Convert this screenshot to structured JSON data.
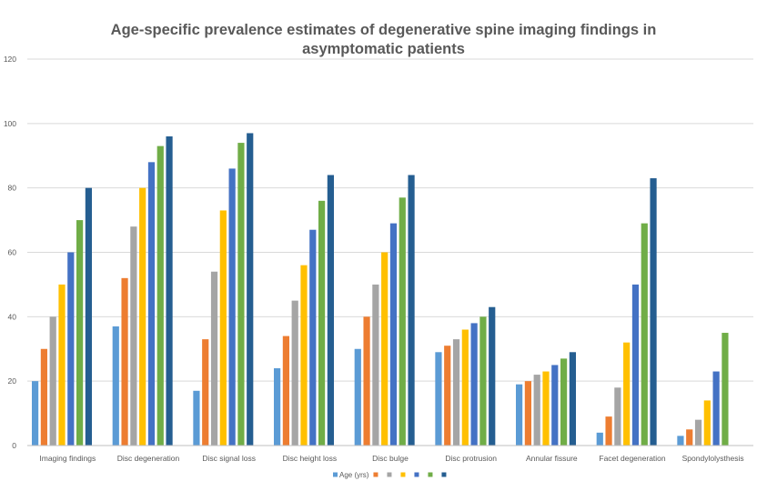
{
  "chart_data": {
    "type": "bar",
    "title_lines": [
      "Age-specific prevalence estimates of degenerative spine imaging findings in",
      "asymptomatic patients"
    ],
    "xlabel": "",
    "ylabel": "",
    "ylim": [
      0,
      120
    ],
    "yticks": [
      "0",
      "20",
      "40",
      "60",
      "80",
      "100",
      "120"
    ],
    "grid": true,
    "legend_position": "bottom",
    "categories": [
      "Imaging findings",
      "Disc degeneration",
      "Disc signal loss",
      "Disc height loss",
      "Disc bulge",
      "Disc protrusion",
      "Annular fissure",
      "Facet degeneration",
      "Spondylolysthesis"
    ],
    "series": [
      {
        "name": "Age (yrs)",
        "color": "#5B9BD5",
        "values": [
          20,
          37,
          17,
          24,
          30,
          29,
          19,
          4,
          3
        ]
      },
      {
        "name": "",
        "color": "#ED7D31",
        "values": [
          30,
          52,
          33,
          34,
          40,
          31,
          20,
          9,
          5
        ]
      },
      {
        "name": "",
        "color": "#A5A5A5",
        "values": [
          40,
          68,
          54,
          45,
          50,
          33,
          22,
          18,
          8
        ]
      },
      {
        "name": "",
        "color": "#FFC000",
        "values": [
          50,
          80,
          73,
          56,
          60,
          36,
          23,
          32,
          14
        ]
      },
      {
        "name": "",
        "color": "#4472C4",
        "values": [
          60,
          88,
          86,
          67,
          69,
          38,
          25,
          50,
          23
        ]
      },
      {
        "name": "",
        "color": "#70AD47",
        "values": [
          70,
          93,
          94,
          76,
          77,
          40,
          27,
          69,
          35
        ]
      },
      {
        "name": "",
        "color": "#255E91",
        "values": [
          80,
          96,
          97,
          84,
          84,
          43,
          29,
          83,
          null
        ]
      }
    ]
  }
}
